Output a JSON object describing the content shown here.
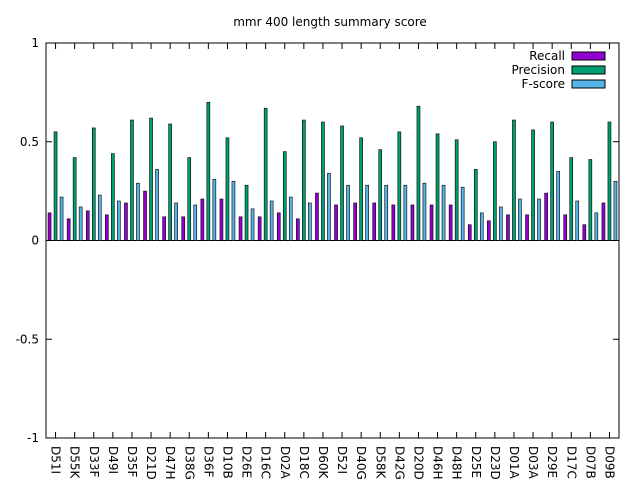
{
  "chart_data": {
    "type": "bar",
    "title": "mmr 400 length summary score",
    "xlabel": "",
    "ylabel": "",
    "ylim": [
      -1,
      1
    ],
    "yticks": [
      {
        "value": 1,
        "label": "1"
      },
      {
        "value": 0.5,
        "label": "0.5"
      },
      {
        "value": 0,
        "label": "0"
      },
      {
        "value": -0.5,
        "label": "-0.5"
      },
      {
        "value": -1,
        "label": "-1"
      }
    ],
    "grid": false,
    "legend_position": "top-right",
    "categories": [
      "D51I",
      "D55K",
      "D33F",
      "D49I",
      "D35F",
      "D21D",
      "D47H",
      "D38G",
      "D36F",
      "D10B",
      "D26E",
      "D16C",
      "D02A",
      "D18C",
      "D60K",
      "D52I",
      "D40G",
      "D58K",
      "D42G",
      "D20D",
      "D46H",
      "D48H",
      "D25E",
      "D23D",
      "D01A",
      "D03A",
      "D29E",
      "D17C",
      "D07B",
      "D09B"
    ],
    "series": [
      {
        "name": "Recall",
        "color": "#9400d3",
        "values": [
          0.14,
          0.11,
          0.15,
          0.13,
          0.19,
          0.25,
          0.12,
          0.12,
          0.21,
          0.21,
          0.12,
          0.12,
          0.14,
          0.11,
          0.24,
          0.18,
          0.19,
          0.19,
          0.18,
          0.18,
          0.18,
          0.18,
          0.08,
          0.1,
          0.13,
          0.13,
          0.24,
          0.13,
          0.08,
          0.19
        ]
      },
      {
        "name": "Precision",
        "color": "#009e73",
        "values": [
          0.55,
          0.42,
          0.57,
          0.44,
          0.61,
          0.62,
          0.59,
          0.42,
          0.7,
          0.52,
          0.28,
          0.67,
          0.45,
          0.61,
          0.6,
          0.58,
          0.52,
          0.46,
          0.55,
          0.68,
          0.54,
          0.51,
          0.36,
          0.5,
          0.61,
          0.56,
          0.6,
          0.42,
          0.41,
          0.6
        ]
      },
      {
        "name": "F-score",
        "color": "#56b4e9",
        "values": [
          0.22,
          0.17,
          0.23,
          0.2,
          0.29,
          0.36,
          0.19,
          0.18,
          0.31,
          0.3,
          0.16,
          0.2,
          0.22,
          0.19,
          0.34,
          0.28,
          0.28,
          0.28,
          0.28,
          0.29,
          0.28,
          0.27,
          0.14,
          0.17,
          0.21,
          0.21,
          0.35,
          0.2,
          0.14,
          0.3
        ]
      }
    ]
  }
}
